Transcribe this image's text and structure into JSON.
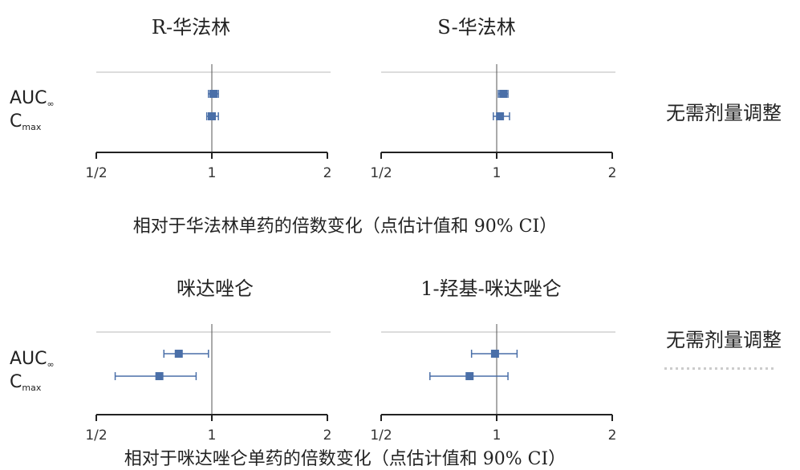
{
  "groups": [
    {
      "panels": [
        {
          "title": "R-华法林",
          "tick_labels": [
            "1/2",
            "1",
            "2"
          ]
        },
        {
          "title": "S-华法林",
          "tick_labels": [
            "1/2",
            "1",
            "2"
          ]
        }
      ],
      "conclusion": "无需剂量调整",
      "caption": "相对于华法林单药的倍数变化（点估计值和 90% CI）"
    },
    {
      "panels": [
        {
          "title": "咪达唑仑",
          "tick_labels": [
            "1/2",
            "1",
            "2"
          ]
        },
        {
          "title": "1-羟基-咪达唑仑",
          "tick_labels": [
            "1/2",
            "1",
            "2"
          ]
        }
      ],
      "conclusion": "无需剂量调整",
      "caption": "相对于咪达唑仑单药的倍数变化（点估计值和 90% CI）"
    }
  ],
  "row_labels": {
    "auc_main": "AUC",
    "auc_sub": "∞",
    "cmax_main": "C",
    "cmax_sub": "max"
  },
  "colors": {
    "marker": "#4a6fa8",
    "axis": "#222222",
    "gridline": "#c8c8c8"
  },
  "chart_data": [
    {
      "type": "forest",
      "title": "R-华法林",
      "x_scale": "log2",
      "xlim": [
        0.5,
        2
      ],
      "series": [
        {
          "name": "AUC∞",
          "point": 1.01,
          "ci": [
            0.98,
            1.04
          ]
        },
        {
          "name": "Cmax",
          "point": 1.0,
          "ci": [
            0.97,
            1.04
          ]
        }
      ]
    },
    {
      "type": "forest",
      "title": "S-华法林",
      "x_scale": "log2",
      "xlim": [
        0.5,
        2
      ],
      "series": [
        {
          "name": "AUC∞",
          "point": 1.04,
          "ci": [
            1.01,
            1.07
          ]
        },
        {
          "name": "Cmax",
          "point": 1.02,
          "ci": [
            0.98,
            1.08
          ]
        }
      ]
    },
    {
      "type": "forest",
      "title": "咪达唑仑",
      "x_scale": "log2",
      "xlim": [
        0.5,
        2
      ],
      "series": [
        {
          "name": "AUC∞",
          "point": 0.82,
          "ci": [
            0.75,
            0.98
          ]
        },
        {
          "name": "Cmax",
          "point": 0.73,
          "ci": [
            0.56,
            0.91
          ]
        }
      ]
    },
    {
      "type": "forest",
      "title": "1-羟基-咪达唑仑",
      "x_scale": "log2",
      "xlim": [
        0.5,
        2
      ],
      "series": [
        {
          "name": "AUC∞",
          "point": 0.99,
          "ci": [
            0.86,
            1.13
          ]
        },
        {
          "name": "Cmax",
          "point": 0.85,
          "ci": [
            0.67,
            1.07
          ]
        }
      ]
    }
  ]
}
